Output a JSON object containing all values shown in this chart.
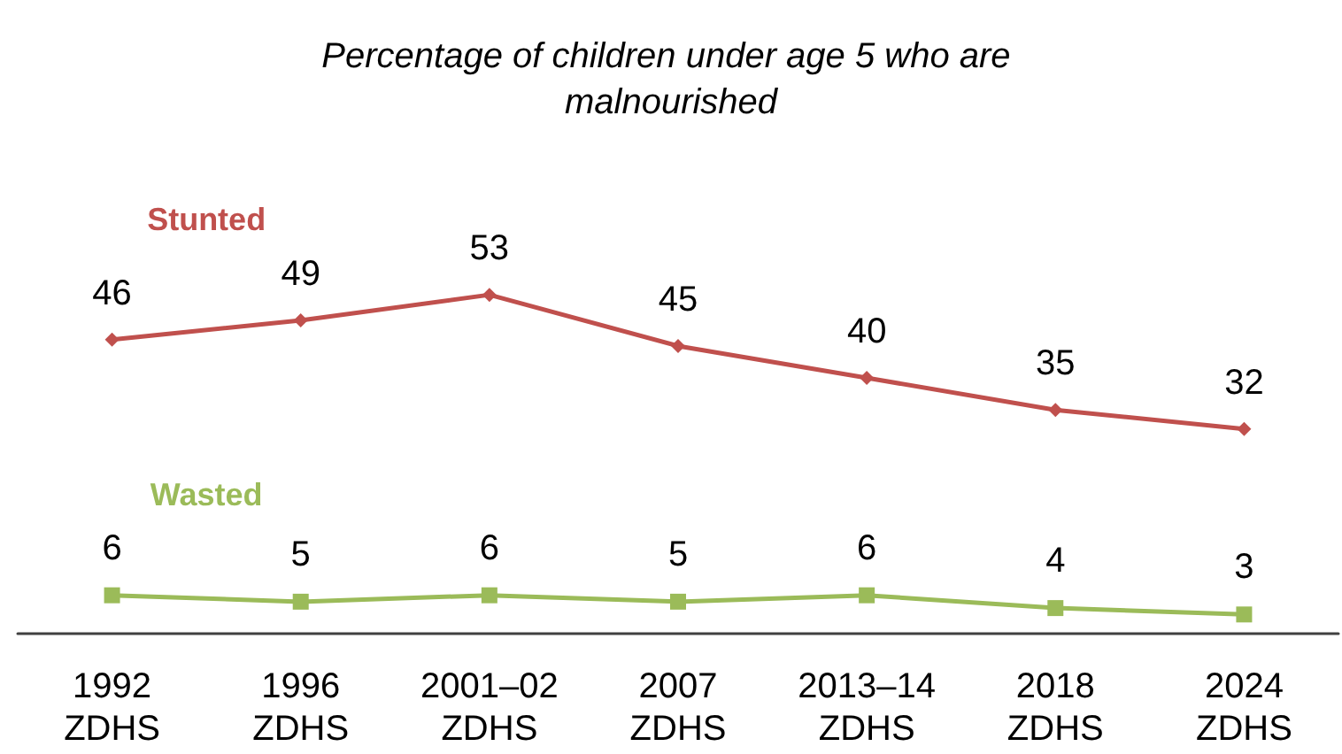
{
  "chart_data": {
    "type": "line",
    "title": "Percentage of children under age 5 who are malnourished",
    "categories": [
      "1992\nZDHS",
      "1996\nZDHS",
      "2001–02\nZDHS",
      "2007\nZDHS",
      "2013–14\nZDHS",
      "2018\nZDHS",
      "2024\nZDHS"
    ],
    "series": [
      {
        "name": "Stunted",
        "color": "#c0504d",
        "marker": "diamond",
        "values": [
          46,
          49,
          53,
          45,
          40,
          35,
          32
        ]
      },
      {
        "name": "Wasted",
        "color": "#9bbb59",
        "marker": "square",
        "values": [
          6,
          5,
          6,
          5,
          6,
          4,
          3
        ]
      }
    ],
    "data_labels": true,
    "tick_labels": "x",
    "grid": false,
    "legend": false
  }
}
